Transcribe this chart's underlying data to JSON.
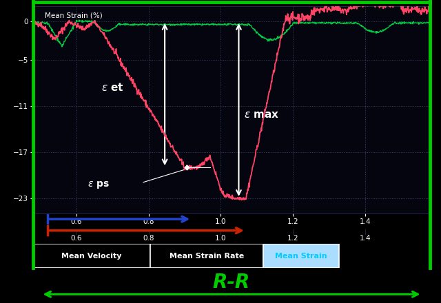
{
  "background_color": "#000000",
  "plot_bg_color": "#050510",
  "grid_color": "#334466",
  "title_text": "Mean Strain (%)",
  "ylim": [
    -25,
    2
  ],
  "xlim": [
    0.48,
    1.58
  ],
  "yticks": [
    0,
    -5,
    -11,
    -17,
    -23
  ],
  "xticks": [
    0.6,
    0.8,
    1.0,
    1.2,
    1.4
  ],
  "pink_color": "#ff4466",
  "green_color": "#00cc44",
  "white_color": "#ffffff",
  "border_color": "#00cc00",
  "cyan_color": "#00ccff",
  "blue_arrow_color": "#2244cc",
  "red_arrow_color": "#cc2200",
  "label_mv": "Mean Velocity",
  "label_msr": "Mean Strain Rate",
  "label_ms": "Mean Strain",
  "label_rr": "R-R"
}
